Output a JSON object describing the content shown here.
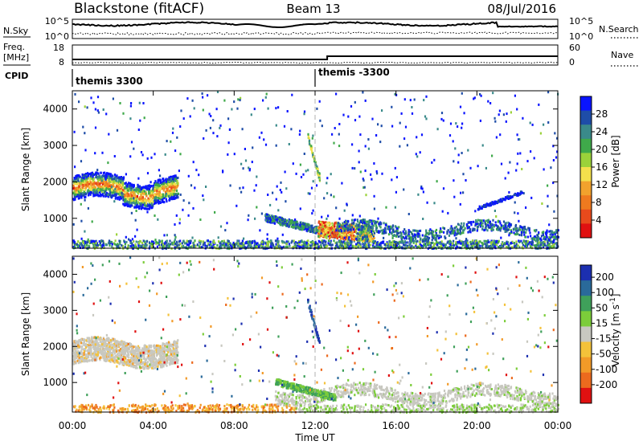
{
  "header": {
    "station": "Blackstone (fitACF)",
    "beam": "Beam 13",
    "date": "08/Jul/2016"
  },
  "noise_panel": {
    "left_label": "N.Sky",
    "right_label": "N.Search",
    "left_ticks": [
      "10^5",
      "10^0"
    ],
    "right_ticks": [
      "10^5",
      "10^0"
    ],
    "right_legend_style": "dotted"
  },
  "freq_panel": {
    "left_label_line1": "Freq.",
    "left_label_line2": "[MHz]",
    "left_ticks": [
      "18",
      "8"
    ],
    "right_label": "Nave",
    "right_ticks": [
      "60",
      "0"
    ],
    "right_legend_style": "dotted"
  },
  "cpid_panel": {
    "label": "CPID",
    "segments": [
      "themis 3300",
      "themis -3300"
    ]
  },
  "time_axis": {
    "title": "Time UT",
    "ticks": [
      "00:00",
      "04:00",
      "08:00",
      "12:00",
      "16:00",
      "20:00",
      "00:00"
    ],
    "range_hours": [
      0,
      24
    ]
  },
  "chart_data": [
    {
      "type": "heatmap",
      "parameter": "power",
      "ylabel": "Slant Range [km]",
      "ylim": [
        180,
        4500
      ],
      "yticks": [
        "1000",
        "2000",
        "3000",
        "4000"
      ],
      "colorbar": {
        "label": "Power [dB]",
        "tick_labels": [
          "4",
          "8",
          "12",
          "16",
          "20",
          "24",
          "28"
        ],
        "colors": [
          "#0a14ff",
          "#1e4da8",
          "#3a8a8a",
          "#3fa94a",
          "#9bd23a",
          "#f4e04c",
          "#f2a22d",
          "#ef7a1f",
          "#e84a1c",
          "#e01111"
        ]
      },
      "features": [
        {
          "kind": "band",
          "t_start": 0.0,
          "t_end": 5.2,
          "range_low": 1500,
          "range_high": 2250,
          "level": "high"
        },
        {
          "kind": "band",
          "t_start": 0.0,
          "t_end": 24.0,
          "range_low": 180,
          "range_high": 400,
          "level": "medium"
        },
        {
          "kind": "blob",
          "t_center": 12.9,
          "range_center": 600,
          "level": "max"
        },
        {
          "kind": "band",
          "t_start": 9.5,
          "t_end": 13.0,
          "range_low": 600,
          "range_high": 1100,
          "level": "low"
        },
        {
          "kind": "band",
          "t_start": 13.0,
          "t_end": 24.0,
          "range_low": 500,
          "range_high": 1100,
          "level": "low"
        }
      ]
    },
    {
      "type": "heatmap",
      "parameter": "velocity",
      "ylabel": "Slant Range [km]",
      "ylim": [
        180,
        4500
      ],
      "yticks": [
        "1000",
        "2000",
        "3000",
        "4000"
      ],
      "colorbar": {
        "label": "Velocity [m s^-1]",
        "tick_labels": [
          "200",
          "100",
          "50",
          "15",
          "-15",
          "-50",
          "-100",
          "-200"
        ],
        "colors": [
          "#1c2fb0",
          "#2a6a9a",
          "#3fa05a",
          "#7ccd3a",
          "#c8c8c0",
          "#f4c23a",
          "#f29a28",
          "#ec6a1e",
          "#e01111"
        ]
      },
      "features": [
        {
          "kind": "band",
          "t_start": 0.0,
          "t_end": 5.2,
          "range_low": 1450,
          "range_high": 2300,
          "level": "ground-scatter"
        },
        {
          "kind": "band",
          "t_start": 10.0,
          "t_end": 24.0,
          "range_low": 500,
          "range_high": 1100,
          "level": "ground-scatter"
        },
        {
          "kind": "band",
          "t_start": 0.0,
          "t_end": 10.0,
          "range_low": 180,
          "range_high": 400,
          "level": "negative"
        }
      ]
    }
  ],
  "marker": {
    "time_hours": 12.0
  }
}
